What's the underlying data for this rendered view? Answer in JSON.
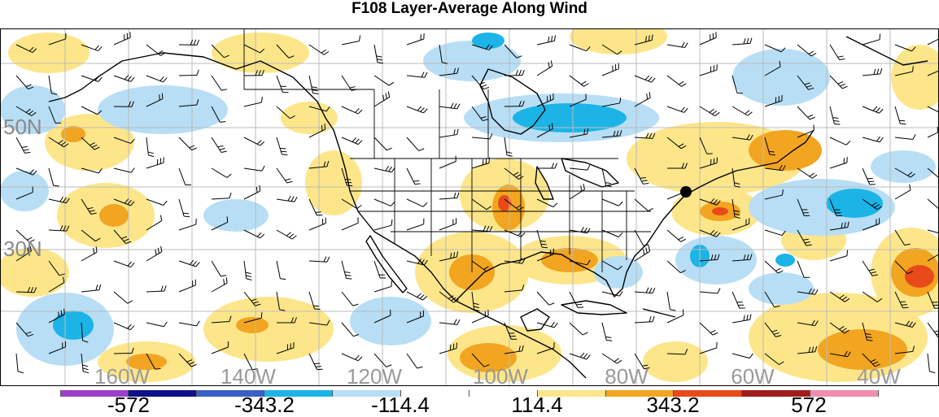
{
  "title": "F108 Layer-Average Along Wind",
  "lat_labels": [
    "50N",
    "30N"
  ],
  "lon_labels": [
    "160W",
    "140W",
    "120W",
    "100W",
    "80W",
    "60W",
    "40W"
  ],
  "colorbar": {
    "colors": [
      "#9b3fc7",
      "#0f0f8c",
      "#3a5fc7",
      "#1cb4e6",
      "#b7def5",
      "#ffffff",
      "#ffffff",
      "#fde68a",
      "#f2a520",
      "#e84a1a",
      "#a11c1c",
      "#f08cb0"
    ],
    "labels": [
      "-572",
      "-343.2",
      "-114.4",
      "114.4",
      "343.2",
      "572"
    ]
  },
  "map_colors": {
    "ocean_bg": "#ffffff",
    "light_blue": "#b7def5",
    "mid_blue": "#1cb4e6",
    "light_yellow": "#fde68a",
    "orange": "#f2a520",
    "red_orange": "#e84a1a",
    "coast": "#000000",
    "grid": "#bbbbbb"
  },
  "marker": "black-dot"
}
